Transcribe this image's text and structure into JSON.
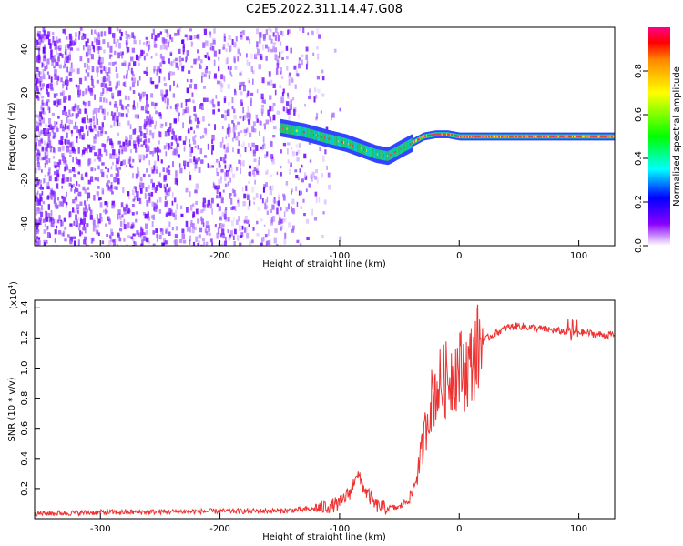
{
  "figure": {
    "title": "C2E5.2022.311.14.47.G08"
  },
  "chart_data": [
    {
      "type": "heatmap",
      "title": "C2E5.2022.311.14.47.G08",
      "xlabel": "Height of straight line (km)",
      "ylabel": "Frequency (Hz)",
      "xlim": [
        -355,
        130
      ],
      "ylim": [
        -50,
        50
      ],
      "x_ticks": [
        -300,
        -200,
        -100,
        0,
        100
      ],
      "y_ticks": [
        -40,
        -20,
        0,
        20,
        40
      ],
      "grid": false,
      "colorbar": {
        "label": "Normalized spectral amplitude",
        "range": [
          0,
          1
        ],
        "ticks": [
          "0.0",
          "0.2",
          "0.4",
          "0.6",
          "0.8"
        ]
      },
      "signal_track": {
        "x": [
          -150,
          -130,
          -110,
          -95,
          -80,
          -70,
          -60,
          -50,
          -40,
          -30,
          -20,
          -10,
          0,
          20,
          50,
          80,
          110,
          130
        ],
        "frequency": [
          4,
          2,
          -1,
          -3,
          -6,
          -8,
          -9,
          -6,
          -3,
          0,
          1,
          1,
          0,
          0,
          0,
          0,
          0,
          0
        ]
      },
      "noise_region": {
        "x": [
          -355,
          -120
        ],
        "note_visible": false
      }
    },
    {
      "type": "line",
      "xlabel": "Height of straight line (km)",
      "ylabel": "SNR (10 * v/v)",
      "multiplier": "(x10",
      "multiplier_exp": "4",
      "multiplier_close": ")",
      "xlim": [
        -355,
        130
      ],
      "ylim": [
        0,
        14500
      ],
      "x_ticks": [
        -300,
        -200,
        -100,
        0,
        100
      ],
      "y_ticks": [
        "0.2",
        "0.4",
        "0.6",
        "0.8",
        "1.0",
        "1.2",
        "1.4"
      ],
      "y_tick_values": [
        2000,
        4000,
        6000,
        8000,
        10000,
        12000,
        14000
      ],
      "grid": false,
      "series": [
        {
          "color": "#ee3333",
          "x": [
            -355,
            -300,
            -250,
            -200,
            -150,
            -120,
            -100,
            -90,
            -86,
            -82,
            -78,
            -70,
            -60,
            -50,
            -40,
            -35,
            -30,
            -25,
            -20,
            -15,
            -10,
            -5,
            0,
            5,
            10,
            15,
            20,
            30,
            40,
            50,
            60,
            70,
            80,
            90,
            100,
            110,
            120,
            130
          ],
          "y": [
            350,
            420,
            460,
            500,
            520,
            650,
            1000,
            1900,
            3100,
            2400,
            1800,
            900,
            700,
            750,
            1500,
            3000,
            5000,
            7500,
            8500,
            9000,
            9300,
            9700,
            10000,
            9800,
            10300,
            11200,
            11800,
            12300,
            12700,
            12800,
            12700,
            12600,
            12500,
            12400,
            12400,
            12300,
            12200,
            12200
          ]
        }
      ]
    }
  ]
}
